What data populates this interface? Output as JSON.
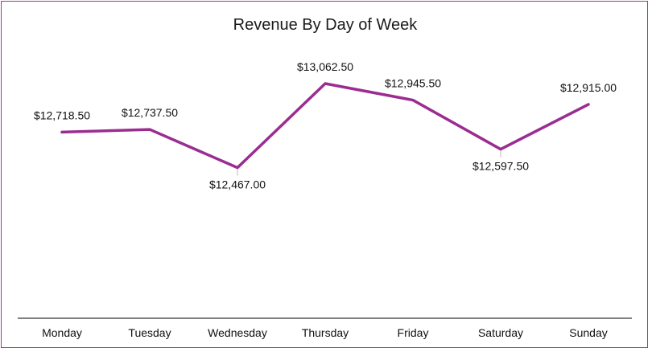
{
  "chart_data": {
    "type": "line",
    "title": "Revenue By Day of Week",
    "categories": [
      "Monday",
      "Tuesday",
      "Wednesday",
      "Thursday",
      "Friday",
      "Saturday",
      "Sunday"
    ],
    "series": [
      {
        "values": [
          12718.5,
          12737.5,
          12467.0,
          13062.5,
          12945.5,
          12597.5,
          12915.0
        ],
        "data_labels": [
          "$12,718.50",
          "$12,737.50",
          "$12,467.00",
          "$13,062.50",
          "$12,945.50",
          "$12,597.50",
          "$12,915.00"
        ],
        "color": "#9b2d91"
      }
    ],
    "xlabel": "",
    "ylabel": "",
    "ylim": [
      11400,
      13200
    ],
    "grid": false,
    "legend": "none"
  },
  "colors": {
    "border": "#9b3b8e",
    "axis": "#000000"
  }
}
